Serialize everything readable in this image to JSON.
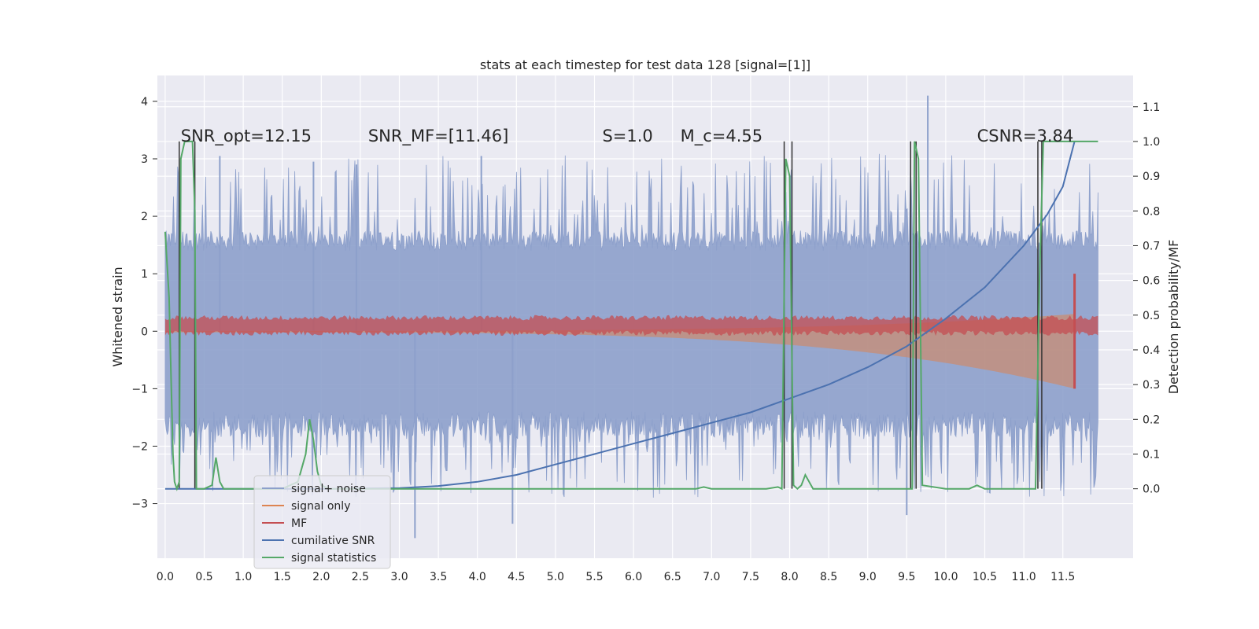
{
  "chart_data": {
    "type": "line",
    "title": "stats at each timestep for test data 128 [signal=[1]]",
    "ylabel_left": "Whitened strain",
    "ylabel_right": "Detection probability/MF",
    "xlim": [
      -0.1,
      12.4
    ],
    "ylim_left": [
      -3.95,
      4.45
    ],
    "ylim_right": [
      -0.2,
      1.19
    ],
    "x_ticks": [
      0.0,
      0.5,
      1.0,
      1.5,
      2.0,
      2.5,
      3.0,
      3.5,
      4.0,
      4.5,
      5.0,
      5.5,
      6.0,
      6.5,
      7.0,
      7.5,
      8.0,
      8.5,
      9.0,
      9.5,
      10.0,
      10.5,
      11.0,
      11.5
    ],
    "x_tick_labels": [
      "0.0",
      "0.5",
      "1.0",
      "1.5",
      "2.0",
      "2.5",
      "3.0",
      "3.5",
      "4.0",
      "4.5",
      "5.0",
      "5.5",
      "6.0",
      "6.5",
      "7.0",
      "7.5",
      "8.0",
      "8.5",
      "9.0",
      "9.5",
      "10.0",
      "10.5",
      "11.0",
      "11.5"
    ],
    "y_left_ticks": [
      -3,
      -2,
      -1,
      0,
      1,
      2,
      3,
      4
    ],
    "y_left_tick_labels": [
      "−3",
      "−2",
      "−1",
      "0",
      "1",
      "2",
      "3",
      "4"
    ],
    "y_right_ticks": [
      0.0,
      0.1,
      0.2,
      0.3,
      0.4,
      0.5,
      0.6,
      0.7,
      0.8,
      0.9,
      1.0,
      1.1
    ],
    "y_right_tick_labels": [
      "0.0",
      "0.1",
      "0.2",
      "0.3",
      "0.4",
      "0.5",
      "0.6",
      "0.7",
      "0.8",
      "0.9",
      "1.0",
      "1.1"
    ],
    "grid": true,
    "legend_position": "lower-left",
    "annotations": [
      {
        "text": "SNR_opt=12.15",
        "x": 0.2,
        "y_right": 1.0
      },
      {
        "text": "SNR_MF=[11.46]",
        "x": 2.6,
        "y_right": 1.0
      },
      {
        "text": "S=1.0",
        "x": 5.6,
        "y_right": 1.0
      },
      {
        "text": "M_c=4.55",
        "x": 6.6,
        "y_right": 1.0
      },
      {
        "text": "CSNR=3.84",
        "x": 10.4,
        "y_right": 1.0
      }
    ],
    "series": [
      {
        "name": "signal+ noise",
        "axis": "left",
        "color": "#8da0cb",
        "style": "noise-band",
        "center": 0.0,
        "band": 1.4,
        "spike_range": [
          -3.6,
          4.1
        ]
      },
      {
        "name": "signal only",
        "axis": "left",
        "color": "#dd8452",
        "style": "chirp",
        "start_amplitude": 0.02,
        "end_amplitude": 1.0,
        "end_x": 11.65
      },
      {
        "name": "MF",
        "axis": "left",
        "color": "#c44e52",
        "style": "red-band",
        "center": 0.1,
        "band": 0.15
      },
      {
        "name": "cumilative SNR",
        "axis": "right",
        "color": "#4c72b0",
        "x": [
          0.0,
          0.4,
          1.0,
          2.0,
          3.0,
          3.5,
          4.0,
          4.5,
          5.0,
          5.5,
          6.0,
          6.5,
          7.0,
          7.5,
          8.0,
          8.5,
          9.0,
          9.5,
          10.0,
          10.5,
          11.0,
          11.3,
          11.5,
          11.65
        ],
        "values": [
          0.0,
          0.0,
          0.0,
          0.0,
          0.002,
          0.008,
          0.02,
          0.04,
          0.07,
          0.1,
          0.13,
          0.16,
          0.19,
          0.22,
          0.26,
          0.3,
          0.35,
          0.41,
          0.49,
          0.58,
          0.7,
          0.79,
          0.87,
          1.0
        ]
      },
      {
        "name": "signal statistics",
        "axis": "right",
        "color": "#55a868",
        "x": [
          0.0,
          0.05,
          0.1,
          0.12,
          0.15,
          0.18,
          0.2,
          0.25,
          0.3,
          0.35,
          0.38,
          0.4,
          0.42,
          0.45,
          0.5,
          0.6,
          0.65,
          0.7,
          0.75,
          0.8,
          1.0,
          1.5,
          1.7,
          1.8,
          1.85,
          1.9,
          1.95,
          2.0,
          2.1,
          2.5,
          3.0,
          4.0,
          5.0,
          6.0,
          6.8,
          6.9,
          7.0,
          7.7,
          7.85,
          7.9,
          7.95,
          8.0,
          8.05,
          8.1,
          8.15,
          8.2,
          8.25,
          8.3,
          8.4,
          9.0,
          9.5,
          9.57,
          9.6,
          9.65,
          9.7,
          10.0,
          10.3,
          10.4,
          10.5,
          11.0,
          11.15,
          11.2,
          11.25,
          11.3,
          11.5,
          11.65,
          11.95
        ],
        "values": [
          0.74,
          0.55,
          0.1,
          0.02,
          0.0,
          0.02,
          0.95,
          1.0,
          1.0,
          1.0,
          0.8,
          0.0,
          0.0,
          0.0,
          0.0,
          0.01,
          0.09,
          0.02,
          0.0,
          0.0,
          0.0,
          0.0,
          0.02,
          0.1,
          0.2,
          0.14,
          0.05,
          0.01,
          0.0,
          0.0,
          0.0,
          0.0,
          0.0,
          0.0,
          0.0,
          0.005,
          0.0,
          0.0,
          0.005,
          0.0,
          0.95,
          0.9,
          0.01,
          0.0,
          0.01,
          0.04,
          0.02,
          0.0,
          0.0,
          0.0,
          0.0,
          0.0,
          1.0,
          0.95,
          0.01,
          0.0,
          0.0,
          0.01,
          0.0,
          0.0,
          0.0,
          0.6,
          1.0,
          1.0,
          1.0,
          1.0,
          1.0
        ]
      },
      {
        "name": "",
        "axis": "right",
        "color": "#333333",
        "style": "vertical-markers",
        "x": [
          0.18,
          0.38,
          7.93,
          8.03,
          9.55,
          9.62,
          11.18,
          11.23
        ]
      }
    ]
  }
}
